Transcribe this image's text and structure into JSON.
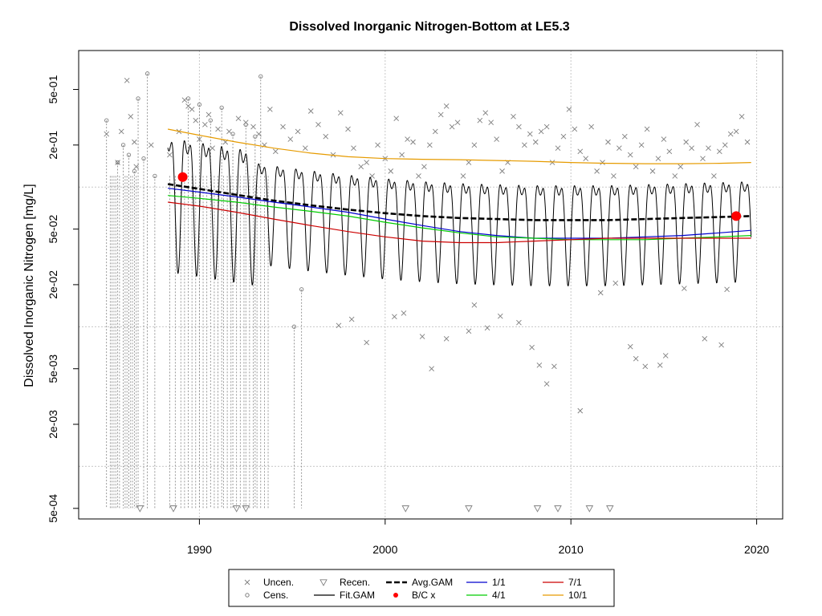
{
  "chart_data": {
    "type": "line",
    "title": "Dissolved Inorganic Nitrogen-Bottom at LE5.3",
    "xlabel": "",
    "ylabel": "Dissolved Inorganic Nitrogen [mg/L]",
    "y_scale": "log",
    "xlim": [
      1983.5,
      2021.4
    ],
    "ylim": [
      0.00042,
      0.95
    ],
    "x_ticks": [
      1990,
      2000,
      2010,
      2020
    ],
    "x_tick_labels": [
      "1990",
      "2000",
      "2010",
      "2020"
    ],
    "y_ticks": [
      0.0005,
      0.002,
      0.005,
      0.02,
      0.05,
      0.2,
      0.5
    ],
    "y_tick_labels": [
      "5e-04",
      "2e-03",
      "5e-03",
      "2e-02",
      "5e-02",
      "2e-01",
      "5e-01"
    ],
    "y_grid_minor": [
      0.001,
      0.01,
      0.1
    ],
    "grid": true,
    "legend_position": "bottom",
    "legend": [
      {
        "label": "Uncen.",
        "symbol": "x",
        "color": "#7f7f7f"
      },
      {
        "label": "Cens.",
        "symbol": "circle",
        "color": "#7f7f7f"
      },
      {
        "label": "Recen.",
        "symbol": "triangle-down",
        "color": "#7f7f7f"
      },
      {
        "label": "Fit.GAM",
        "symbol": "line",
        "color": "#000000"
      },
      {
        "label": "Avg.GAM",
        "symbol": "dashed-line",
        "color": "#000000"
      },
      {
        "label": "B/C x",
        "symbol": "dot",
        "color": "#ff0000"
      },
      {
        "label": "1/1",
        "symbol": "line",
        "color": "#0000cd"
      },
      {
        "label": "4/1",
        "symbol": "line",
        "color": "#00cc00"
      },
      {
        "label": "7/1",
        "symbol": "line",
        "color": "#cc0000"
      },
      {
        "label": "10/1",
        "symbol": "line",
        "color": "#e69b00"
      }
    ],
    "series": [
      {
        "name": "Avg.GAM",
        "style": "dashed",
        "color": "#000000",
        "x": [
          1988.3,
          1990,
          1992,
          1994,
          1996,
          1998,
          2000,
          2002,
          2004,
          2006,
          2008,
          2010,
          2012,
          2014,
          2016,
          2018,
          2019.7
        ],
        "y": [
          0.105,
          0.097,
          0.088,
          0.08,
          0.074,
          0.069,
          0.065,
          0.062,
          0.06,
          0.059,
          0.058,
          0.058,
          0.058,
          0.059,
          0.06,
          0.061,
          0.062
        ]
      },
      {
        "name": "1/1",
        "color": "#0000cd",
        "x": [
          1988.3,
          1990,
          1992,
          1994,
          1996,
          1998,
          2000,
          2002,
          2004,
          2006,
          2008,
          2010,
          2012,
          2014,
          2016,
          2018,
          2019.7
        ],
        "y": [
          0.098,
          0.092,
          0.085,
          0.078,
          0.072,
          0.066,
          0.059,
          0.053,
          0.048,
          0.045,
          0.043,
          0.043,
          0.043,
          0.044,
          0.045,
          0.047,
          0.049
        ]
      },
      {
        "name": "4/1",
        "color": "#00cc00",
        "x": [
          1988.3,
          1990,
          1992,
          1994,
          1996,
          1998,
          2000,
          2002,
          2004,
          2006,
          2008,
          2010,
          2012,
          2014,
          2016,
          2018,
          2019.7
        ],
        "y": [
          0.087,
          0.083,
          0.078,
          0.072,
          0.067,
          0.062,
          0.056,
          0.051,
          0.047,
          0.044,
          0.043,
          0.042,
          0.042,
          0.042,
          0.043,
          0.044,
          0.045
        ]
      },
      {
        "name": "7/1",
        "color": "#cc0000",
        "x": [
          1988.3,
          1990,
          1992,
          1994,
          1996,
          1998,
          2000,
          2002,
          2004,
          2006,
          2008,
          2010,
          2012,
          2014,
          2016,
          2018,
          2019.7
        ],
        "y": [
          0.078,
          0.073,
          0.066,
          0.059,
          0.053,
          0.048,
          0.044,
          0.041,
          0.04,
          0.04,
          0.041,
          0.042,
          0.043,
          0.043,
          0.043,
          0.043,
          0.043
        ]
      },
      {
        "name": "10/1",
        "color": "#e69b00",
        "x": [
          1988.3,
          1990,
          1992,
          1994,
          1996,
          1998,
          2000,
          2002,
          2004,
          2006,
          2008,
          2010,
          2012,
          2014,
          2016,
          2018,
          2019.7
        ],
        "y": [
          0.26,
          0.235,
          0.21,
          0.19,
          0.175,
          0.165,
          0.16,
          0.158,
          0.157,
          0.155,
          0.153,
          0.15,
          0.148,
          0.147,
          0.147,
          0.148,
          0.15
        ]
      }
    ],
    "fit_gam": {
      "name": "Fit.GAM",
      "color": "#000000",
      "x_start": 1988.3,
      "x_end": 2019.7,
      "cycles_per_year": 1,
      "note": "seasonal oscillation around Avg.GAM"
    },
    "bc_points": {
      "name": "B/C x",
      "color": "#ff0000",
      "x": [
        1989.1,
        2018.9
      ],
      "y": [
        0.118,
        0.062
      ]
    },
    "uncensored": {
      "name": "Uncen.",
      "color": "#7f7f7f",
      "x": [
        1985.0,
        1985.6,
        1985.8,
        1986.1,
        1986.3,
        1986.5,
        1986.6,
        1987.4,
        1988.4,
        1988.9,
        1989.2,
        1989.4,
        1989.6,
        1989.8,
        1990.0,
        1990.3,
        1990.5,
        1990.7,
        1991.0,
        1991.4,
        1991.6,
        1992.1,
        1992.5,
        1992.9,
        1993.2,
        1993.5,
        1993.8,
        1994.1,
        1994.5,
        1994.9,
        1995.3,
        1995.7,
        1996.0,
        1996.4,
        1996.8,
        1997.2,
        1997.6,
        1998.0,
        1998.3,
        1998.7,
        1999.0,
        1999.3,
        1999.6,
        2000.0,
        2000.3,
        2000.6,
        2000.9,
        2001.2,
        2001.5,
        2001.8,
        2002.1,
        2002.4,
        2002.7,
        2003.0,
        2003.3,
        2003.6,
        2003.9,
        2004.2,
        2004.5,
        2004.8,
        2005.1,
        2005.4,
        2005.7,
        2006.0,
        2006.3,
        2006.6,
        2006.9,
        2007.2,
        2007.5,
        2007.8,
        2008.1,
        2008.4,
        2008.7,
        2009.0,
        2009.3,
        2009.6,
        2009.9,
        2010.2,
        2010.5,
        2010.8,
        2011.1,
        2011.4,
        2011.7,
        2012.0,
        2012.3,
        2012.6,
        2012.9,
        2013.2,
        2013.5,
        2013.8,
        2014.1,
        2014.4,
        2014.7,
        2015.0,
        2015.3,
        2015.6,
        2015.9,
        2016.2,
        2016.5,
        2016.8,
        2017.1,
        2017.4,
        2017.7,
        2018.0,
        2018.3,
        2018.6,
        2018.9,
        2019.2,
        2019.5,
        1999.0,
        1998.2,
        2000.5,
        2001.0,
        2002.0,
        2002.5,
        2004.5,
        2005.5,
        2006.2,
        2007.9,
        2008.3,
        2008.7,
        2009.1,
        2013.2,
        2014.0,
        2014.8,
        2017.2,
        2018.1,
        2013.5,
        2015.1,
        1997.5,
        2003.3,
        2004.8,
        2007.2,
        2010.5,
        2011.6,
        2012.4,
        2016.1,
        2018.4
      ],
      "y": [
        0.24,
        0.15,
        0.25,
        0.58,
        0.32,
        0.21,
        0.14,
        0.2,
        0.17,
        0.25,
        0.42,
        0.38,
        0.36,
        0.3,
        0.22,
        0.28,
        0.33,
        0.19,
        0.26,
        0.21,
        0.25,
        0.31,
        0.29,
        0.27,
        0.24,
        0.2,
        0.36,
        0.18,
        0.27,
        0.22,
        0.25,
        0.19,
        0.35,
        0.28,
        0.23,
        0.17,
        0.34,
        0.26,
        0.19,
        0.14,
        0.15,
        0.12,
        0.2,
        0.16,
        0.13,
        0.31,
        0.17,
        0.22,
        0.21,
        0.12,
        0.14,
        0.2,
        0.25,
        0.33,
        0.38,
        0.27,
        0.29,
        0.12,
        0.15,
        0.2,
        0.3,
        0.34,
        0.29,
        0.22,
        0.13,
        0.15,
        0.32,
        0.27,
        0.2,
        0.24,
        0.21,
        0.25,
        0.27,
        0.15,
        0.19,
        0.23,
        0.36,
        0.26,
        0.18,
        0.16,
        0.27,
        0.13,
        0.15,
        0.21,
        0.12,
        0.19,
        0.23,
        0.17,
        0.14,
        0.2,
        0.26,
        0.13,
        0.16,
        0.22,
        0.18,
        0.12,
        0.14,
        0.21,
        0.19,
        0.28,
        0.16,
        0.19,
        0.12,
        0.18,
        0.2,
        0.24,
        0.25,
        0.32,
        0.21,
        0.0077,
        0.0113,
        0.0118,
        0.0125,
        0.0085,
        0.005,
        0.0093,
        0.0098,
        0.0119,
        0.0071,
        0.0053,
        0.0039,
        0.0052,
        0.0072,
        0.0052,
        0.0053,
        0.0082,
        0.0074,
        0.0059,
        0.0062,
        0.0102,
        0.0082,
        0.0143,
        0.0107,
        0.0025,
        0.0175,
        0.0205,
        0.0188,
        0.0185
      ]
    },
    "censored": {
      "name": "Cens.",
      "color": "#7f7f7f",
      "detection_bottom": 0.0005,
      "x": [
        1985.0,
        1985.6,
        1985.9,
        1986.2,
        1986.5,
        1986.7,
        1987.0,
        1987.2,
        1987.6,
        1989.4,
        1990.0,
        1990.6,
        1991.2,
        1991.8,
        1992.5,
        1993.0,
        1993.3,
        1995.1,
        1995.5
      ],
      "y": [
        0.3,
        0.15,
        0.2,
        0.17,
        0.13,
        0.43,
        0.16,
        0.65,
        0.12,
        0.43,
        0.39,
        0.3,
        0.37,
        0.24,
        0.28,
        0.23,
        0.62,
        0.01,
        0.0185
      ]
    },
    "recensored": {
      "name": "Recen.",
      "color": "#7f7f7f",
      "x": [
        1986.8,
        1988.6,
        1992.0,
        1992.5,
        2001.1,
        2004.5,
        2008.2,
        2009.3,
        2011.0,
        2012.1
      ],
      "y": [
        0.0005,
        0.0005,
        0.0005,
        0.0005,
        0.0005,
        0.0005,
        0.0005,
        0.0005,
        0.0005,
        0.0005
      ]
    }
  }
}
